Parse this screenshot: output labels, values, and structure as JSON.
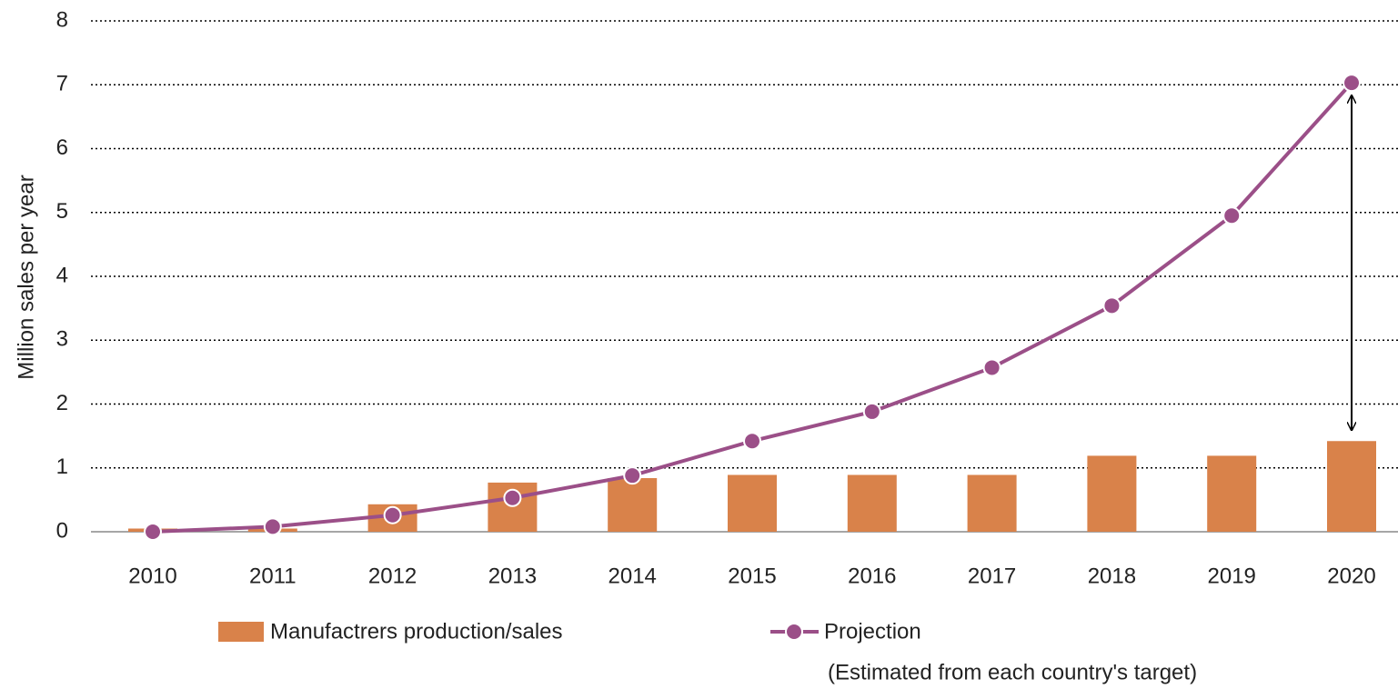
{
  "chart_data": {
    "type": "bar_line",
    "y_label": "Million sales per year",
    "categories": [
      "2010",
      "2011",
      "2012",
      "2013",
      "2014",
      "2015",
      "2016",
      "2017",
      "2018",
      "2019",
      "2020"
    ],
    "series": [
      {
        "name": "Manufactrers production/sales",
        "type": "bar",
        "color": "#d9824a",
        "values": [
          0.05,
          0.05,
          0.43,
          0.77,
          0.84,
          0.89,
          0.89,
          0.89,
          1.19,
          1.19,
          1.42
        ]
      },
      {
        "name": "Projection",
        "type": "line",
        "color": "#9b4f88",
        "values": [
          0,
          0.08,
          0.26,
          0.53,
          0.88,
          1.42,
          1.88,
          2.57,
          3.54,
          4.95,
          7.03
        ]
      }
    ],
    "annotations": [
      "(Estimated from each country's target)"
    ],
    "ylim": [
      0,
      8
    ],
    "yticks": [
      0,
      1,
      2,
      3,
      4,
      5,
      6,
      7,
      8
    ],
    "grid": true
  }
}
